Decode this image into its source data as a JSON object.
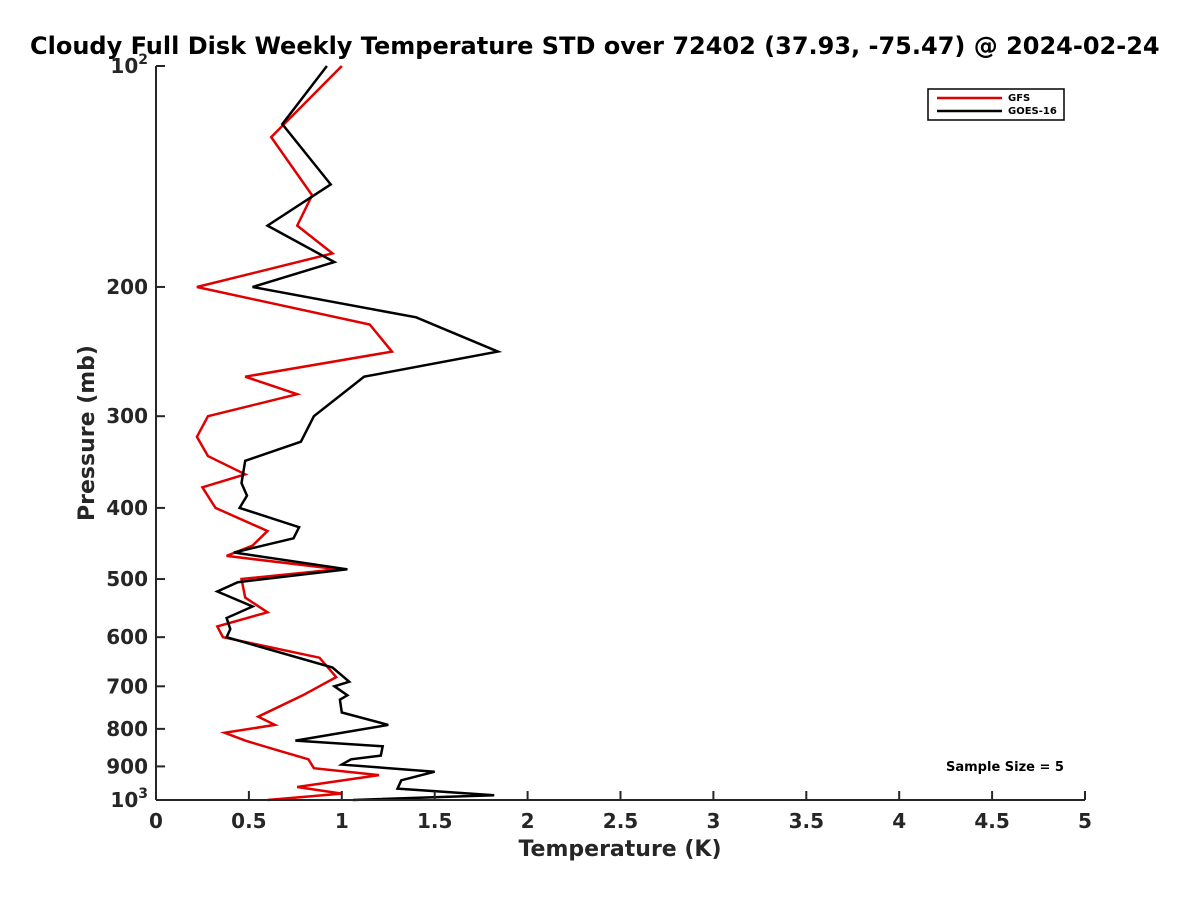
{
  "chart_data": {
    "type": "line",
    "title": "Cloudy Full Disk Weekly Temperature STD over 72402 (37.93, -75.47) @ 2024-02-24",
    "xlabel": "Temperature (K)",
    "ylabel": "Pressure (mb)",
    "xlim": [
      0,
      5
    ],
    "ylim": [
      100,
      1000
    ],
    "y_scale": "log",
    "y_reversed": true,
    "grid": false,
    "legend_position": "top-right",
    "x_ticks": [
      {
        "value": 0,
        "label": "0"
      },
      {
        "value": 0.5,
        "label": "0.5"
      },
      {
        "value": 1,
        "label": "1"
      },
      {
        "value": 1.5,
        "label": "1.5"
      },
      {
        "value": 2,
        "label": "2"
      },
      {
        "value": 2.5,
        "label": "2.5"
      },
      {
        "value": 3,
        "label": "3"
      },
      {
        "value": 3.5,
        "label": "3.5"
      },
      {
        "value": 4,
        "label": "4"
      },
      {
        "value": 4.5,
        "label": "4.5"
      },
      {
        "value": 5,
        "label": "5"
      }
    ],
    "y_ticks": [
      {
        "value": 100,
        "label": "10",
        "sup": "2"
      },
      {
        "value": 200,
        "label": "200"
      },
      {
        "value": 300,
        "label": "300"
      },
      {
        "value": 400,
        "label": "400"
      },
      {
        "value": 500,
        "label": "500"
      },
      {
        "value": 600,
        "label": "600"
      },
      {
        "value": 700,
        "label": "700"
      },
      {
        "value": 800,
        "label": "800"
      },
      {
        "value": 900,
        "label": "900"
      },
      {
        "value": 1000,
        "label": "10",
        "sup": "3"
      }
    ],
    "annotation": "Sample Size = 5",
    "series": [
      {
        "name": "GFS",
        "color": "#e00000",
        "points": [
          [
            1.0,
            100
          ],
          [
            0.62,
            125
          ],
          [
            0.84,
            150
          ],
          [
            0.76,
            165
          ],
          [
            0.95,
            180
          ],
          [
            0.22,
            200
          ],
          [
            1.15,
            225
          ],
          [
            1.27,
            245
          ],
          [
            0.48,
            265
          ],
          [
            0.76,
            280
          ],
          [
            0.28,
            300
          ],
          [
            0.22,
            320
          ],
          [
            0.28,
            340
          ],
          [
            0.48,
            360
          ],
          [
            0.25,
            375
          ],
          [
            0.32,
            400
          ],
          [
            0.6,
            430
          ],
          [
            0.52,
            450
          ],
          [
            0.38,
            465
          ],
          [
            0.98,
            485
          ],
          [
            0.46,
            500
          ],
          [
            0.48,
            530
          ],
          [
            0.6,
            555
          ],
          [
            0.33,
            580
          ],
          [
            0.36,
            600
          ],
          [
            0.88,
            640
          ],
          [
            0.97,
            680
          ],
          [
            0.79,
            720
          ],
          [
            0.55,
            770
          ],
          [
            0.64,
            790
          ],
          [
            0.37,
            810
          ],
          [
            0.48,
            830
          ],
          [
            0.65,
            855
          ],
          [
            0.82,
            880
          ],
          [
            0.85,
            905
          ],
          [
            1.2,
            925
          ],
          [
            0.76,
            960
          ],
          [
            1.0,
            980
          ],
          [
            0.6,
            1000
          ]
        ]
      },
      {
        "name": "GOES-16",
        "color": "#000000",
        "points": [
          [
            0.92,
            100
          ],
          [
            0.68,
            120
          ],
          [
            0.94,
            145
          ],
          [
            0.6,
            165
          ],
          [
            0.96,
            185
          ],
          [
            0.52,
            200
          ],
          [
            1.4,
            220
          ],
          [
            1.84,
            245
          ],
          [
            1.12,
            265
          ],
          [
            0.85,
            300
          ],
          [
            0.78,
            325
          ],
          [
            0.48,
            345
          ],
          [
            0.46,
            370
          ],
          [
            0.49,
            385
          ],
          [
            0.45,
            400
          ],
          [
            0.77,
            425
          ],
          [
            0.74,
            440
          ],
          [
            0.42,
            460
          ],
          [
            1.03,
            485
          ],
          [
            0.44,
            505
          ],
          [
            0.33,
            520
          ],
          [
            0.52,
            545
          ],
          [
            0.38,
            565
          ],
          [
            0.4,
            585
          ],
          [
            0.38,
            600
          ],
          [
            0.95,
            660
          ],
          [
            1.04,
            690
          ],
          [
            0.96,
            700
          ],
          [
            1.03,
            720
          ],
          [
            0.99,
            730
          ],
          [
            1.0,
            760
          ],
          [
            1.25,
            790
          ],
          [
            0.75,
            830
          ],
          [
            1.22,
            845
          ],
          [
            1.21,
            870
          ],
          [
            1.05,
            880
          ],
          [
            1.0,
            895
          ],
          [
            1.5,
            915
          ],
          [
            1.32,
            940
          ],
          [
            1.3,
            965
          ],
          [
            1.82,
            985
          ],
          [
            1.06,
            1000
          ]
        ]
      }
    ]
  }
}
